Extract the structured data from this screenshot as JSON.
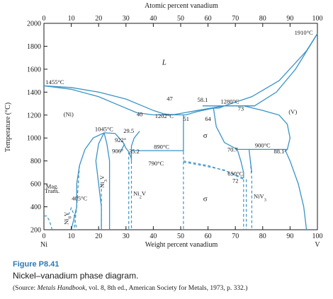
{
  "chart_data": {
    "type": "phase_diagram",
    "xlabel": "Weight percent vanadium",
    "x2label": "Atomic percent vanadium",
    "ylabel": "Temperature (°C)",
    "xlim": [
      0,
      100
    ],
    "ylim": [
      200,
      2000
    ],
    "xticks": [
      "0",
      "10",
      "20",
      "30",
      "40",
      "50",
      "60",
      "70",
      "80",
      "90",
      "100"
    ],
    "x2ticks": [
      "0",
      "10",
      "20",
      "30",
      "40",
      "50",
      "60",
      "70",
      "80",
      "90",
      "100"
    ],
    "yticks": [
      "200",
      "400",
      "600",
      "800",
      "1000",
      "1200",
      "1400",
      "1600",
      "1800",
      "2000"
    ],
    "x_end_labels": {
      "left": "Ni",
      "right": "V"
    },
    "grid": false,
    "lines_solid": [
      [
        [
          0,
          1455
        ],
        [
          10,
          1440
        ],
        [
          20,
          1400
        ],
        [
          30,
          1340
        ],
        [
          36,
          1280
        ],
        [
          40,
          1240
        ],
        [
          44,
          1210
        ],
        [
          47,
          1202
        ]
      ],
      [
        [
          0,
          1455
        ],
        [
          10,
          1425
        ],
        [
          20,
          1360
        ],
        [
          28,
          1280
        ],
        [
          34,
          1220
        ],
        [
          40,
          1202
        ]
      ],
      [
        [
          47,
          1202
        ],
        [
          56,
          1240
        ],
        [
          66,
          1280
        ]
      ],
      [
        [
          66,
          1280
        ],
        [
          76,
          1360
        ],
        [
          86,
          1500
        ],
        [
          96,
          1760
        ],
        [
          100,
          1910
        ]
      ],
      [
        [
          66,
          1280
        ],
        [
          77,
          1280
        ],
        [
          85,
          1400
        ],
        [
          92,
          1600
        ],
        [
          100,
          1910
        ]
      ],
      [
        [
          73,
          1280
        ],
        [
          80,
          1240
        ],
        [
          86,
          1200
        ],
        [
          89,
          1120
        ],
        [
          90,
          1000
        ],
        [
          89,
          900
        ],
        [
          88,
          880
        ]
      ],
      [
        [
          51,
          1202
        ],
        [
          52,
          1202
        ],
        [
          56,
          1230
        ],
        [
          62,
          1260
        ],
        [
          64,
          1260
        ],
        [
          66,
          1280
        ]
      ],
      [
        [
          40,
          1202
        ],
        [
          51,
          1202
        ]
      ],
      [
        [
          51,
          1202
        ],
        [
          51,
          880
        ]
      ],
      [
        [
          58,
          1280
        ],
        [
          77,
          1280
        ]
      ],
      [
        [
          35,
          1060
        ],
        [
          33,
          1000
        ],
        [
          32,
          930
        ],
        [
          32,
          880
        ],
        [
          32,
          800
        ]
      ],
      [
        [
          32,
          890
        ],
        [
          51,
          890
        ]
      ],
      [
        [
          22,
          1045
        ],
        [
          26,
          1040
        ],
        [
          29,
          960
        ],
        [
          30,
          910
        ],
        [
          31,
          880
        ],
        [
          32,
          820
        ]
      ],
      [
        [
          22,
          1045
        ],
        [
          18,
          1000
        ],
        [
          15,
          900
        ],
        [
          13,
          760
        ],
        [
          12,
          600
        ],
        [
          12,
          400
        ],
        [
          11,
          300
        ],
        [
          10,
          200
        ]
      ],
      [
        [
          22,
          1045
        ],
        [
          20,
          950
        ],
        [
          19,
          800
        ],
        [
          20,
          600
        ],
        [
          21,
          400
        ],
        [
          21,
          200
        ]
      ],
      [
        [
          22,
          1045
        ],
        [
          23,
          950
        ],
        [
          24,
          800
        ],
        [
          24,
          600
        ],
        [
          24,
          400
        ],
        [
          24,
          200
        ]
      ],
      [
        [
          29.5,
          950
        ],
        [
          28,
          880
        ]
      ],
      [
        [
          70,
          900
        ],
        [
          89,
          900
        ]
      ],
      [
        [
          70.7,
          900
        ],
        [
          72,
          800
        ],
        [
          73,
          700
        ],
        [
          73,
          650
        ]
      ],
      [
        [
          75,
          900
        ],
        [
          75.5,
          800
        ],
        [
          76,
          700
        ]
      ],
      [
        [
          62,
          1260
        ],
        [
          63,
          1100
        ],
        [
          66,
          960
        ],
        [
          70.7,
          900
        ]
      ],
      [
        [
          88.1,
          900
        ],
        [
          90,
          800
        ],
        [
          93,
          600
        ],
        [
          95,
          400
        ],
        [
          96,
          200
        ]
      ]
    ],
    "lines_dashed": [
      [
        [
          51,
          790
        ],
        [
          58,
          760
        ],
        [
          66,
          720
        ],
        [
          72,
          650
        ],
        [
          73,
          640
        ]
      ],
      [
        [
          51,
          800
        ],
        [
          60,
          760
        ],
        [
          68,
          700
        ],
        [
          73,
          650
        ]
      ],
      [
        [
          73,
          640
        ],
        [
          73,
          200
        ]
      ],
      [
        [
          74,
          640
        ],
        [
          74,
          200
        ]
      ],
      [
        [
          75.5,
          800
        ],
        [
          76,
          640
        ],
        [
          76,
          200
        ]
      ],
      [
        [
          51,
          880
        ],
        [
          51,
          200
        ]
      ],
      [
        [
          31,
          880
        ],
        [
          31,
          200
        ]
      ],
      [
        [
          32,
          800
        ],
        [
          32,
          200
        ]
      ],
      [
        [
          21,
          600
        ],
        [
          21,
          200
        ]
      ],
      [
        [
          13,
          760
        ],
        [
          12,
          400
        ],
        [
          11,
          200
        ]
      ],
      [
        [
          0,
          320
        ],
        [
          1,
          320
        ],
        [
          2,
          280
        ],
        [
          3,
          200
        ]
      ],
      [
        [
          9,
          330
        ],
        [
          10,
          390
        ],
        [
          11,
          330
        ],
        [
          12,
          200
        ]
      ]
    ],
    "annotations": [
      {
        "text": "L",
        "x": 44,
        "y": 1640
      },
      {
        "text": "(Ni)",
        "x": 9,
        "y": 1190
      },
      {
        "text": "(V)",
        "x": 91,
        "y": 1210
      },
      {
        "text": "σ",
        "x": 59,
        "y": 1000
      },
      {
        "text": "σ",
        "x": 59,
        "y": 450
      },
      {
        "text": "1455°C",
        "x": 4,
        "y": 1470
      },
      {
        "text": "1910°C",
        "x": 95,
        "y": 1900
      },
      {
        "text": "1280°C",
        "x": 68,
        "y": 1300
      },
      {
        "text": "1202°C",
        "x": 44,
        "y": 1175
      },
      {
        "text": "1045°C",
        "x": 22,
        "y": 1060
      },
      {
        "text": "922°",
        "x": 28,
        "y": 965
      },
      {
        "text": "906°",
        "x": 27,
        "y": 870
      },
      {
        "text": "890°C",
        "x": 43,
        "y": 905
      },
      {
        "text": "900°C",
        "x": 80,
        "y": 918
      },
      {
        "text": "790°C",
        "x": 41,
        "y": 760
      },
      {
        "text": "650°C",
        "x": 70,
        "y": 673
      },
      {
        "text": "405°C",
        "x": 13,
        "y": 455
      },
      {
        "text": "47",
        "x": 46,
        "y": 1325
      },
      {
        "text": "58.1",
        "x": 58,
        "y": 1315
      },
      {
        "text": "73",
        "x": 72,
        "y": 1240
      },
      {
        "text": "40",
        "x": 35,
        "y": 1190
      },
      {
        "text": "51",
        "x": 52,
        "y": 1150
      },
      {
        "text": "64",
        "x": 60,
        "y": 1150
      },
      {
        "text": "29.5",
        "x": 31,
        "y": 1045
      },
      {
        "text": "35.2",
        "x": 33,
        "y": 866
      },
      {
        "text": "70.7",
        "x": 69,
        "y": 880
      },
      {
        "text": "88.1",
        "x": 86,
        "y": 865
      },
      {
        "text": "72",
        "x": 70,
        "y": 610
      },
      {
        "text": "Ni3V",
        "x": 22,
        "y": 620
      },
      {
        "text": "Ni2V",
        "x": 35,
        "y": 500
      },
      {
        "text": "NiV3",
        "x": 79,
        "y": 475
      },
      {
        "text": "Ni8V",
        "x": 9,
        "y": 300
      },
      {
        "text": "Mag.",
        "x": 3,
        "y": 560
      },
      {
        "text": "Trans.",
        "x": 3,
        "y": 520
      }
    ]
  },
  "caption": {
    "label": "Figure P8.41",
    "title": "Nickel–vanadium phase diagram.",
    "source_prefix": "(Source: ",
    "source_italic": "Metals Handbook",
    "source_rest": ", vol. 8, 8th ed., American Society for Metals, 1973, p. 332.)"
  }
}
